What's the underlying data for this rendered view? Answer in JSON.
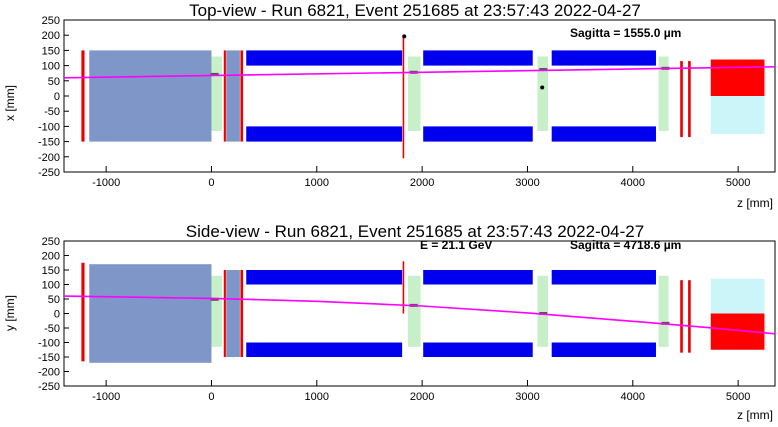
{
  "chart_data": [
    {
      "type": "scatter",
      "title": "Top-view - Run 6821, Event 251685 at 23:57:43 2022-04-27",
      "xlabel": "z [mm]",
      "ylabel": "x [mm]",
      "xlim": [
        -1400,
        5350
      ],
      "ylim": [
        -250,
        250
      ],
      "xticks": [
        -1000,
        0,
        1000,
        2000,
        3000,
        4000,
        5000
      ],
      "yticks": [
        -250,
        -200,
        -150,
        -100,
        -50,
        0,
        50,
        100,
        150,
        200,
        250
      ],
      "annotations": [
        {
          "text": "Sagitta = 1555.0 µm"
        }
      ],
      "colors": {
        "track": "#ff00ff",
        "absorber": "#7f96c8",
        "magnet": "#0000ee",
        "station": "#c8f0c8",
        "wall": "#ee0000",
        "calo_hit": "#ff0000",
        "calo": "#ccf5fa"
      },
      "track": [
        {
          "z": -1400,
          "v": 60
        },
        {
          "z": 5350,
          "v": 96
        }
      ],
      "hits": [
        {
          "z": 1830,
          "v": 196
        },
        {
          "z": 3140,
          "v": 28
        }
      ],
      "hit_marks": [
        {
          "z": 30,
          "v": 71
        },
        {
          "z": 1920,
          "v": 78
        },
        {
          "z": 3150,
          "v": 87
        },
        {
          "z": 4310,
          "v": 91
        }
      ],
      "detector": [
        {
          "kind": "absorber",
          "z0": -1160,
          "z1": 0,
          "v0": -150,
          "v1": 150
        },
        {
          "kind": "absorber",
          "z0": 140,
          "z1": 270,
          "v0": -150,
          "v1": 150
        },
        {
          "kind": "wall",
          "z0": -1235,
          "z1": -1205,
          "v0": -150,
          "v1": 150
        },
        {
          "kind": "wall",
          "z0": 117,
          "z1": 137,
          "v0": -150,
          "v1": 150
        },
        {
          "kind": "wall",
          "z0": 275,
          "z1": 300,
          "v0": -150,
          "v1": 150
        },
        {
          "kind": "station",
          "z0": 0,
          "z1": 100,
          "v0": -115,
          "v1": 130
        },
        {
          "kind": "station",
          "z0": 1865,
          "z1": 1985,
          "v0": -115,
          "v1": 130
        },
        {
          "kind": "station",
          "z0": 3095,
          "z1": 3195,
          "v0": -115,
          "v1": 130
        },
        {
          "kind": "station",
          "z0": 4245,
          "z1": 4340,
          "v0": -115,
          "v1": 130
        },
        {
          "kind": "magnet",
          "z0": 330,
          "z1": 1810,
          "v0": 100,
          "v1": 150
        },
        {
          "kind": "magnet",
          "z0": 330,
          "z1": 1810,
          "v0": -150,
          "v1": -100
        },
        {
          "kind": "magnet",
          "z0": 2010,
          "z1": 3050,
          "v0": 100,
          "v1": 150
        },
        {
          "kind": "magnet",
          "z0": 2010,
          "z1": 3050,
          "v0": -150,
          "v1": -100
        },
        {
          "kind": "magnet",
          "z0": 3230,
          "z1": 4220,
          "v0": 100,
          "v1": 150
        },
        {
          "kind": "magnet",
          "z0": 3230,
          "z1": 4220,
          "v0": -150,
          "v1": -100
        },
        {
          "kind": "wall",
          "z0": 1815,
          "z1": 1830,
          "v0": -205,
          "v1": 195
        },
        {
          "kind": "wall",
          "z0": 4450,
          "z1": 4475,
          "v0": -135,
          "v1": 115
        },
        {
          "kind": "wall",
          "z0": 4525,
          "z1": 4550,
          "v0": -135,
          "v1": 115
        },
        {
          "kind": "calo_hit",
          "z0": 4740,
          "z1": 5250,
          "v0": 0,
          "v1": 120
        },
        {
          "kind": "calo",
          "z0": 4740,
          "z1": 5250,
          "v0": -125,
          "v1": 0
        }
      ]
    },
    {
      "type": "scatter",
      "title": "Side-view - Run 6821, Event 251685 at 23:57:43 2022-04-27",
      "xlabel": "z [mm]",
      "ylabel": "y [mm]",
      "xlim": [
        -1400,
        5350
      ],
      "ylim": [
        -250,
        250
      ],
      "xticks": [
        -1000,
        0,
        1000,
        2000,
        3000,
        4000,
        5000
      ],
      "yticks": [
        -250,
        -200,
        -150,
        -100,
        -50,
        0,
        50,
        100,
        150,
        200,
        250
      ],
      "annotations": [
        {
          "text": "E = 21.1 GeV"
        },
        {
          "text": "Sagitta = 4718.6 µm"
        }
      ],
      "colors": {
        "track": "#ff00ff",
        "absorber": "#7f96c8",
        "magnet": "#0000ee",
        "station": "#c8f0c8",
        "wall": "#ee0000",
        "calo_hit": "#ff0000",
        "calo": "#ccf5fa"
      },
      "track": [
        {
          "z": -1400,
          "v": 60
        },
        {
          "z": 0,
          "v": 52
        },
        {
          "z": 1000,
          "v": 42
        },
        {
          "z": 2000,
          "v": 26
        },
        {
          "z": 3000,
          "v": 2
        },
        {
          "z": 4000,
          "v": -27
        },
        {
          "z": 4700,
          "v": -48
        },
        {
          "z": 5350,
          "v": -70
        }
      ],
      "hits": [],
      "hit_marks": [
        {
          "z": 30,
          "v": 49
        },
        {
          "z": 1920,
          "v": 28
        },
        {
          "z": 3150,
          "v": 0
        },
        {
          "z": 4310,
          "v": -34
        }
      ],
      "detector": [
        {
          "kind": "absorber",
          "z0": -1160,
          "z1": 0,
          "v0": -170,
          "v1": 170
        },
        {
          "kind": "absorber",
          "z0": 140,
          "z1": 270,
          "v0": -150,
          "v1": 150
        },
        {
          "kind": "wall",
          "z0": -1235,
          "z1": -1205,
          "v0": -165,
          "v1": 175
        },
        {
          "kind": "wall",
          "z0": 117,
          "z1": 137,
          "v0": -150,
          "v1": 150
        },
        {
          "kind": "wall",
          "z0": 275,
          "z1": 300,
          "v0": -150,
          "v1": 150
        },
        {
          "kind": "station",
          "z0": 0,
          "z1": 100,
          "v0": -115,
          "v1": 130
        },
        {
          "kind": "station",
          "z0": 1865,
          "z1": 1985,
          "v0": -115,
          "v1": 130
        },
        {
          "kind": "station",
          "z0": 3095,
          "z1": 3195,
          "v0": -115,
          "v1": 130
        },
        {
          "kind": "station",
          "z0": 4245,
          "z1": 4340,
          "v0": -115,
          "v1": 130
        },
        {
          "kind": "magnet",
          "z0": 330,
          "z1": 1810,
          "v0": 100,
          "v1": 150
        },
        {
          "kind": "magnet",
          "z0": 330,
          "z1": 1810,
          "v0": -150,
          "v1": -100
        },
        {
          "kind": "magnet",
          "z0": 2010,
          "z1": 3050,
          "v0": 100,
          "v1": 150
        },
        {
          "kind": "magnet",
          "z0": 2010,
          "z1": 3050,
          "v0": -150,
          "v1": -100
        },
        {
          "kind": "magnet",
          "z0": 3230,
          "z1": 4220,
          "v0": 100,
          "v1": 150
        },
        {
          "kind": "magnet",
          "z0": 3230,
          "z1": 4220,
          "v0": -150,
          "v1": -100
        },
        {
          "kind": "wall",
          "z0": 1815,
          "z1": 1830,
          "v0": 0,
          "v1": 180
        },
        {
          "kind": "wall",
          "z0": 4450,
          "z1": 4475,
          "v0": -135,
          "v1": 115
        },
        {
          "kind": "wall",
          "z0": 4525,
          "z1": 4550,
          "v0": -135,
          "v1": 115
        },
        {
          "kind": "calo",
          "z0": 4740,
          "z1": 5250,
          "v0": 0,
          "v1": 120
        },
        {
          "kind": "calo_hit",
          "z0": 4740,
          "z1": 5250,
          "v0": -125,
          "v1": 0
        }
      ]
    }
  ]
}
